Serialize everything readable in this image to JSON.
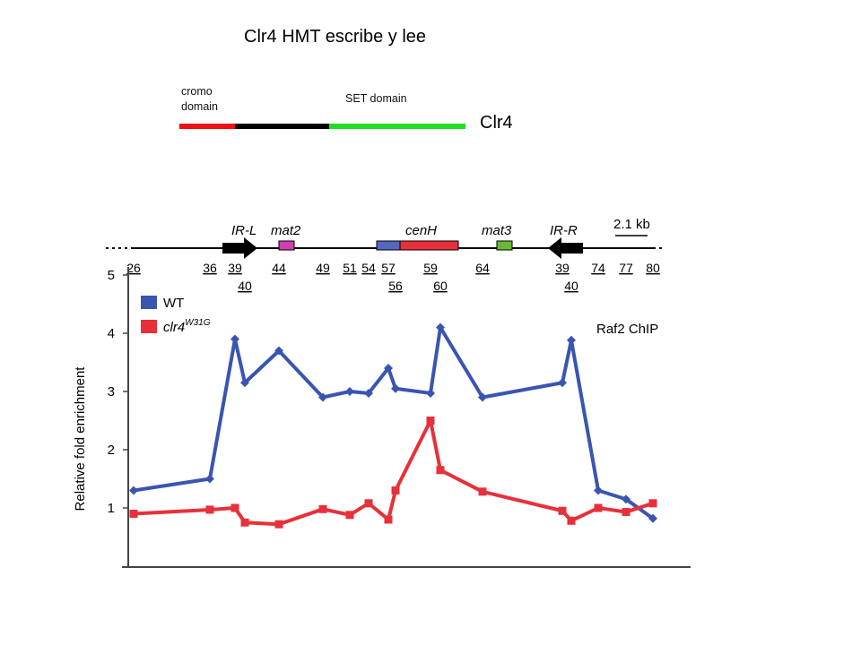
{
  "slide": {
    "title": "Clr4 HMT escribe y lee",
    "protein": {
      "name": "Clr4",
      "domains": [
        {
          "label": "cromo domain",
          "color": "#ee1111"
        },
        {
          "label": "",
          "color": "#000000"
        },
        {
          "label": "SET domain",
          "color": "#22dd22"
        }
      ]
    }
  },
  "colors": {
    "wt": "#3a55b0",
    "mutant": "#e8303a",
    "arrow": "#000000",
    "mat2_box": "#d040b0",
    "cenH_left_box": "#5568c0",
    "cenH_right_box": "#e8303a",
    "mat3_box": "#66bb33",
    "axis": "#444444"
  },
  "chart_data": {
    "type": "line",
    "ylabel": "Relative fold enrichment",
    "annotation": "Raf2 ChIP",
    "ylim": [
      0,
      5
    ],
    "yticks": [
      "1",
      "2",
      "3",
      "4",
      "5"
    ],
    "map": {
      "features": [
        "IR-L",
        "mat2",
        "cenH",
        "mat3",
        "IR-R"
      ],
      "scale_label": "2.1 kb",
      "positions": [
        "26",
        "36",
        "39",
        "40",
        "44",
        "49",
        "51",
        "54",
        "57",
        "56",
        "59",
        "60",
        "64",
        "39",
        "40",
        "74",
        "77",
        "80"
      ]
    },
    "legend": [
      {
        "name": "WT",
        "sup": ""
      },
      {
        "name": "clr4",
        "sup": "W31G"
      }
    ],
    "series": [
      {
        "name": "WT",
        "x": [
          26,
          36,
          39,
          40,
          44,
          49,
          51,
          54,
          57,
          56,
          59,
          60,
          64,
          39,
          40,
          74,
          77,
          80
        ],
        "values": [
          1.3,
          1.5,
          3.9,
          3.15,
          3.7,
          2.9,
          3.0,
          2.97,
          3.4,
          3.05,
          2.97,
          4.1,
          2.9,
          3.15,
          3.88,
          1.3,
          1.15,
          0.82
        ]
      },
      {
        "name": "clr4W31G",
        "x": [
          26,
          36,
          39,
          40,
          44,
          49,
          51,
          54,
          57,
          56,
          59,
          60,
          64,
          39,
          40,
          74,
          77,
          80
        ],
        "values": [
          0.9,
          0.97,
          1.0,
          0.75,
          0.72,
          0.98,
          0.88,
          1.08,
          0.8,
          1.3,
          2.5,
          1.65,
          1.28,
          0.95,
          0.78,
          1.0,
          0.93,
          1.08
        ]
      }
    ]
  }
}
